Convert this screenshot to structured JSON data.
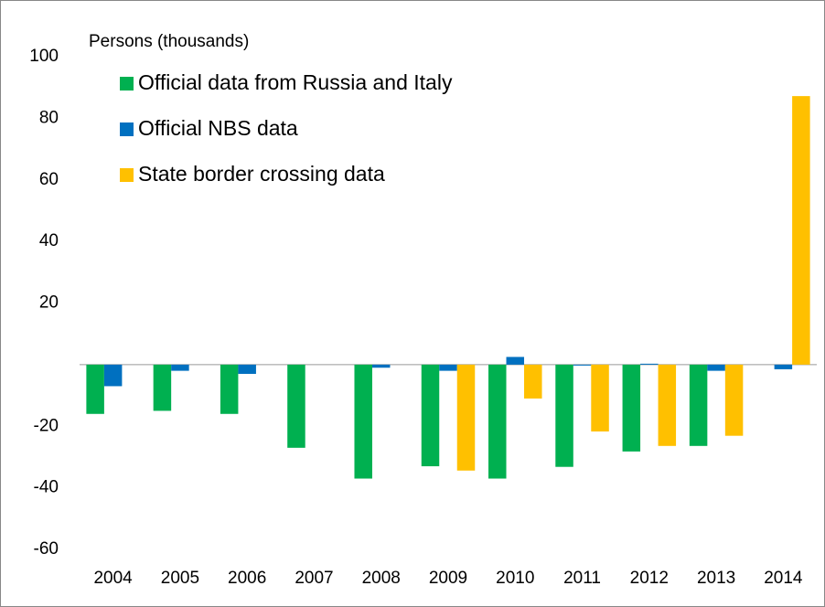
{
  "chart_data": {
    "type": "bar",
    "y_label": "Persons (thousands)",
    "categories": [
      "2004",
      "2005",
      "2006",
      "2007",
      "2008",
      "2009",
      "2010",
      "2011",
      "2012",
      "2013",
      "2014"
    ],
    "series": [
      {
        "name": "Official data from Russia and Italy",
        "color": "#00b050",
        "values": [
          -16,
          -15,
          -16,
          -27,
          -37,
          -33,
          -37,
          -33.2,
          -28.2,
          -26.4,
          null
        ]
      },
      {
        "name": "Official NBS data",
        "color": "#0070c0",
        "values": [
          -7,
          -2,
          -3,
          null,
          -1,
          -2,
          2.5,
          -0.3,
          0.3,
          -2,
          -1.5
        ]
      },
      {
        "name": "State border crossing data",
        "color": "#ffc000",
        "values": [
          null,
          null,
          null,
          null,
          null,
          -34.4,
          -11,
          -21.7,
          -26.4,
          -23.1,
          87.2
        ]
      }
    ],
    "ylim": [
      -60,
      100
    ],
    "yticks": [
      -60,
      -40,
      -20,
      20,
      40,
      60,
      80,
      100
    ],
    "legend": "upper-left"
  }
}
